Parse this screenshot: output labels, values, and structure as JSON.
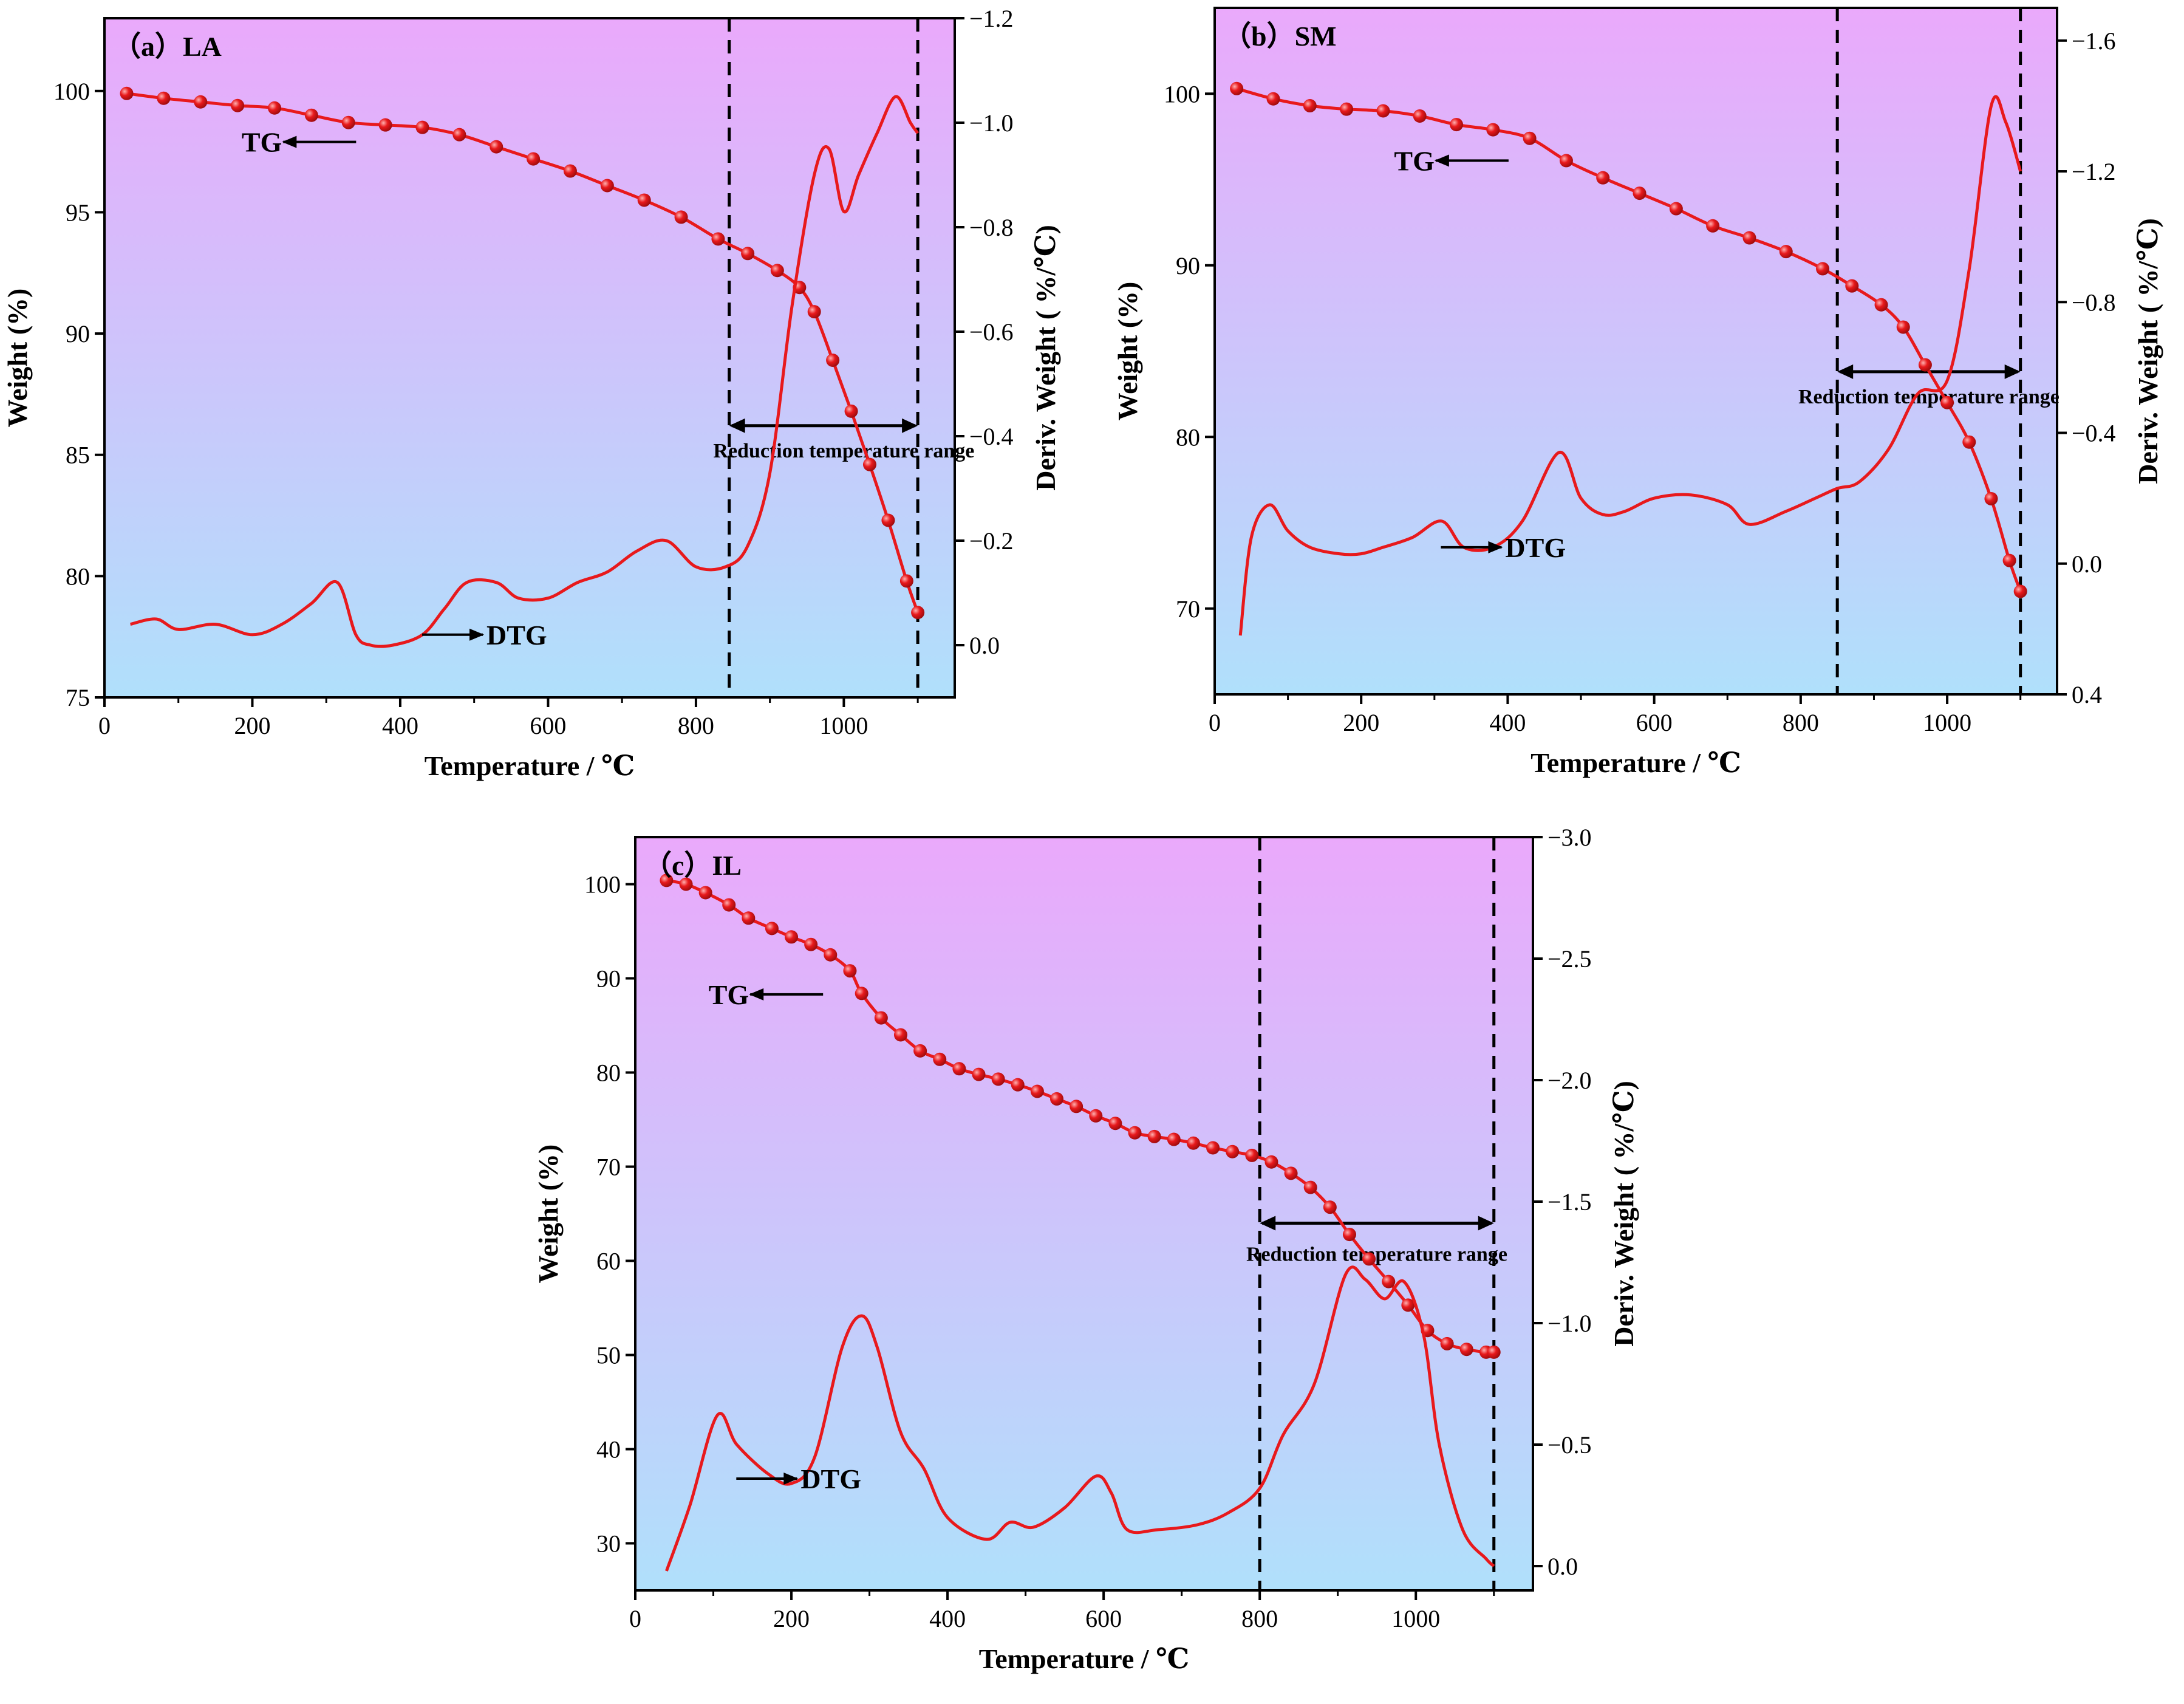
{
  "figure": {
    "colors": {
      "curve": "#e8191c",
      "bg_top": "#eaa9fb",
      "bg_bottom": "#b0e0fb",
      "axis": "#000000"
    }
  },
  "chart_data": [
    {
      "type": "line",
      "panel_label": "（a）LA",
      "xlabel": "Temperature / ℃",
      "ylabel": "Weight (%)",
      "y2label": "Deriv. Weight ( %/℃)",
      "xlim": [
        0,
        1150
      ],
      "ylim": [
        75,
        103
      ],
      "y2lim": [
        0.1,
        -1.2
      ],
      "x_ticks": [
        "0",
        "200",
        "400",
        "600",
        "800",
        "1000"
      ],
      "x_tick_values": [
        0,
        200,
        400,
        600,
        800,
        1000
      ],
      "y_ticks": [
        "75",
        "80",
        "85",
        "90",
        "95",
        "100"
      ],
      "y_tick_values": [
        75,
        80,
        85,
        90,
        95,
        100
      ],
      "y2_ticks": [
        "0.0",
        "−0.2",
        "−0.4",
        "−0.6",
        "−0.8",
        "−1.0",
        "−1.2"
      ],
      "y2_tick_values": [
        0,
        -0.2,
        -0.4,
        -0.6,
        -0.8,
        -1.0,
        -1.2
      ],
      "grid": false,
      "reduction_range": {
        "label": "Reduction temperature range",
        "x": [
          845,
          1100
        ]
      },
      "tg_label": "TG",
      "dtg_label": "DTG",
      "series": [
        {
          "name": "TG",
          "axis": "left",
          "markers": true,
          "x": [
            30,
            80,
            130,
            180,
            230,
            280,
            330,
            380,
            430,
            480,
            530,
            580,
            630,
            680,
            730,
            780,
            830,
            870,
            910,
            940,
            960,
            985,
            1010,
            1035,
            1060,
            1085,
            1100
          ],
          "y": [
            99.9,
            99.7,
            99.55,
            99.4,
            99.3,
            99.0,
            98.7,
            98.6,
            98.5,
            98.2,
            97.7,
            97.2,
            96.7,
            96.1,
            95.5,
            94.8,
            93.9,
            93.3,
            92.6,
            91.9,
            90.9,
            88.9,
            86.8,
            84.6,
            82.3,
            79.8,
            78.5
          ]
        },
        {
          "name": "DTG",
          "axis": "right",
          "markers": false,
          "x": [
            35,
            70,
            100,
            150,
            200,
            240,
            280,
            315,
            340,
            360,
            390,
            430,
            460,
            490,
            530,
            560,
            600,
            640,
            680,
            720,
            760,
            800,
            840,
            870,
            900,
            930,
            960,
            980,
            1000,
            1020,
            1045,
            1070,
            1090,
            1100
          ],
          "y": [
            -0.04,
            -0.05,
            -0.03,
            -0.04,
            -0.02,
            -0.04,
            -0.08,
            -0.12,
            -0.02,
            0.0,
            0.0,
            -0.02,
            -0.07,
            -0.12,
            -0.12,
            -0.09,
            -0.09,
            -0.12,
            -0.14,
            -0.18,
            -0.2,
            -0.15,
            -0.15,
            -0.19,
            -0.33,
            -0.65,
            -0.9,
            -0.95,
            -0.83,
            -0.9,
            -0.98,
            -1.05,
            -1.0,
            -0.98
          ]
        }
      ]
    },
    {
      "type": "line",
      "panel_label": "（b）SM",
      "xlabel": "Temperature / ℃",
      "ylabel": "Weight (%)",
      "y2label": "Deriv. Weight ( %/℃)",
      "xlim": [
        0,
        1150
      ],
      "ylim": [
        65,
        105
      ],
      "y2lim": [
        0.4,
        -1.7
      ],
      "x_ticks": [
        "0",
        "200",
        "400",
        "600",
        "800",
        "1000"
      ],
      "x_tick_values": [
        0,
        200,
        400,
        600,
        800,
        1000
      ],
      "y_ticks": [
        "70",
        "80",
        "90",
        "100"
      ],
      "y_tick_values": [
        70,
        80,
        90,
        100
      ],
      "y2_ticks": [
        "0.4",
        "0.0",
        "−0.4",
        "−0.8",
        "−1.2",
        "−1.6"
      ],
      "y2_tick_values": [
        0.4,
        0,
        -0.4,
        -0.8,
        -1.2,
        -1.6
      ],
      "grid": false,
      "reduction_range": {
        "label": "Reduction temperature range",
        "x": [
          850,
          1100
        ]
      },
      "tg_label": "TG",
      "dtg_label": "DTG",
      "series": [
        {
          "name": "TG",
          "axis": "left",
          "markers": true,
          "x": [
            30,
            80,
            130,
            180,
            230,
            280,
            330,
            380,
            430,
            480,
            530,
            580,
            630,
            680,
            730,
            780,
            830,
            870,
            910,
            940,
            970,
            1000,
            1030,
            1060,
            1085,
            1100
          ],
          "y": [
            100.3,
            99.7,
            99.3,
            99.1,
            99.0,
            98.7,
            98.2,
            97.9,
            97.4,
            96.1,
            95.1,
            94.2,
            93.3,
            92.3,
            91.6,
            90.8,
            89.8,
            88.8,
            87.7,
            86.4,
            84.2,
            82.0,
            79.7,
            76.4,
            72.8,
            71.0
          ]
        },
        {
          "name": "DTG",
          "axis": "right",
          "markers": false,
          "x": [
            35,
            50,
            75,
            100,
            130,
            170,
            200,
            230,
            270,
            310,
            340,
            380,
            420,
            470,
            500,
            530,
            560,
            600,
            650,
            700,
            730,
            780,
            820,
            850,
            880,
            920,
            960,
            1000,
            1030,
            1060,
            1080,
            1100
          ],
          "y": [
            0.22,
            -0.08,
            -0.18,
            -0.1,
            -0.05,
            -0.03,
            -0.03,
            -0.05,
            -0.08,
            -0.13,
            -0.05,
            -0.05,
            -0.13,
            -0.34,
            -0.2,
            -0.15,
            -0.16,
            -0.2,
            -0.21,
            -0.18,
            -0.12,
            -0.16,
            -0.2,
            -0.23,
            -0.25,
            -0.35,
            -0.52,
            -0.56,
            -0.9,
            -1.4,
            -1.35,
            -1.2
          ]
        }
      ]
    },
    {
      "type": "line",
      "panel_label": "（c）IL",
      "xlabel": "Temperature / ℃",
      "ylabel": "Weight (%)",
      "y2label": "Deriv. Weight ( %/℃)",
      "xlim": [
        0,
        1150
      ],
      "ylim": [
        25,
        105
      ],
      "y2lim": [
        0.1,
        -3.0
      ],
      "x_ticks": [
        "0",
        "200",
        "400",
        "600",
        "800",
        "1000"
      ],
      "x_tick_values": [
        0,
        200,
        400,
        600,
        800,
        1000
      ],
      "y_ticks": [
        "30",
        "40",
        "50",
        "60",
        "70",
        "80",
        "90",
        "100"
      ],
      "y_tick_values": [
        30,
        40,
        50,
        60,
        70,
        80,
        90,
        100
      ],
      "y2_ticks": [
        "0.0",
        "−0.5",
        "−1.0",
        "−1.5",
        "−2.0",
        "−2.5",
        "−3.0"
      ],
      "y2_tick_values": [
        0,
        -0.5,
        -1.0,
        -1.5,
        -2.0,
        -2.5,
        -3.0
      ],
      "grid": false,
      "reduction_range": {
        "label": "Reduction temperature range",
        "x": [
          800,
          1100
        ]
      },
      "tg_label": "TG",
      "dtg_label": "DTG",
      "series": [
        {
          "name": "TG",
          "axis": "left",
          "markers": true,
          "x": [
            40,
            65,
            90,
            120,
            145,
            175,
            200,
            225,
            250,
            275,
            290,
            315,
            340,
            365,
            390,
            415,
            440,
            465,
            490,
            515,
            540,
            565,
            590,
            615,
            640,
            665,
            690,
            715,
            740,
            765,
            790,
            815,
            840,
            865,
            890,
            915,
            940,
            965,
            990,
            1015,
            1040,
            1065,
            1090,
            1100
          ],
          "y": [
            100.4,
            100.0,
            99.1,
            97.8,
            96.4,
            95.3,
            94.4,
            93.6,
            92.5,
            90.8,
            88.4,
            85.8,
            84.0,
            82.3,
            81.4,
            80.4,
            79.8,
            79.3,
            78.7,
            78.0,
            77.2,
            76.4,
            75.4,
            74.6,
            73.6,
            73.2,
            72.9,
            72.5,
            72.0,
            71.6,
            71.2,
            70.5,
            69.3,
            67.8,
            65.7,
            62.8,
            60.2,
            57.8,
            55.3,
            52.6,
            51.2,
            50.6,
            50.3,
            50.3
          ]
        },
        {
          "name": "DTG",
          "axis": "right",
          "markers": false,
          "x": [
            40,
            70,
            105,
            130,
            170,
            200,
            230,
            265,
            290,
            310,
            340,
            370,
            400,
            450,
            480,
            510,
            550,
            590,
            610,
            630,
            670,
            720,
            760,
            800,
            830,
            870,
            910,
            935,
            960,
            985,
            1010,
            1030,
            1060,
            1090,
            1100
          ],
          "y": [
            0.02,
            -0.25,
            -0.62,
            -0.5,
            -0.38,
            -0.34,
            -0.45,
            -0.9,
            -1.03,
            -0.9,
            -0.55,
            -0.4,
            -0.2,
            -0.11,
            -0.18,
            -0.16,
            -0.24,
            -0.37,
            -0.3,
            -0.15,
            -0.15,
            -0.17,
            -0.22,
            -0.32,
            -0.54,
            -0.75,
            -1.2,
            -1.18,
            -1.1,
            -1.17,
            -0.95,
            -0.5,
            -0.15,
            -0.03,
            0.0
          ]
        }
      ]
    }
  ]
}
